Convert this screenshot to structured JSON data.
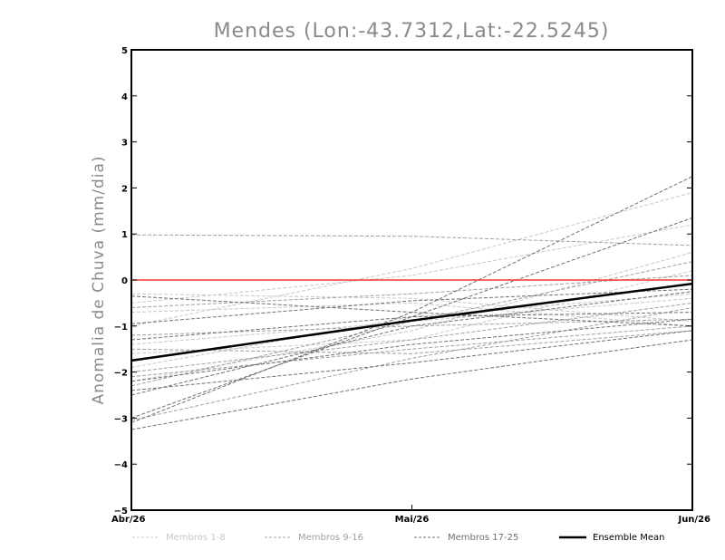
{
  "chart_data": {
    "type": "line",
    "title": "Mendes (Lon:-43.7312,Lat:-22.5245)",
    "xlabel": "",
    "ylabel": "Anomalia de Chuva (mm/dia)",
    "categories": [
      "Abr/26",
      "Mai/26",
      "Jun/26"
    ],
    "ylim": [
      -5,
      5
    ],
    "yticks": [
      -5,
      -4,
      -3,
      -2,
      -1,
      0,
      1,
      2,
      3,
      4,
      5
    ],
    "grid": false,
    "reference_line": {
      "value": 0,
      "color": "#ff3333"
    },
    "series": [
      {
        "name": "m01",
        "group": 0,
        "values": [
          -1.4,
          -0.9,
          -0.4
        ]
      },
      {
        "name": "m02",
        "group": 0,
        "values": [
          -1.0,
          0.25,
          1.9
        ]
      },
      {
        "name": "m03",
        "group": 0,
        "values": [
          -2.2,
          -1.1,
          0.6
        ]
      },
      {
        "name": "m04",
        "group": 0,
        "values": [
          -0.7,
          -0.5,
          -1.0
        ]
      },
      {
        "name": "m05",
        "group": 0,
        "values": [
          -1.6,
          -1.3,
          0.2
        ]
      },
      {
        "name": "m06",
        "group": 0,
        "values": [
          -0.5,
          0.1,
          1.2
        ]
      },
      {
        "name": "m07",
        "group": 0,
        "values": [
          -1.9,
          -0.8,
          -0.3
        ]
      },
      {
        "name": "m08",
        "group": 0,
        "values": [
          -0.3,
          -0.4,
          -0.9
        ]
      },
      {
        "name": "m09",
        "group": 1,
        "values": [
          0.98,
          0.95,
          0.75
        ]
      },
      {
        "name": "m10",
        "group": 1,
        "values": [
          -2.1,
          -1.5,
          -1.0
        ]
      },
      {
        "name": "m11",
        "group": 1,
        "values": [
          -2.3,
          -0.9,
          0.4
        ]
      },
      {
        "name": "m12",
        "group": 1,
        "values": [
          -1.2,
          -1.0,
          -0.85
        ]
      },
      {
        "name": "m13",
        "group": 1,
        "values": [
          -0.6,
          -0.3,
          0.1
        ]
      },
      {
        "name": "m14",
        "group": 1,
        "values": [
          -1.5,
          -1.6,
          -1.1
        ]
      },
      {
        "name": "m15",
        "group": 1,
        "values": [
          -3.05,
          -1.7,
          -0.6
        ]
      },
      {
        "name": "m16",
        "group": 1,
        "values": [
          -2.0,
          -1.3,
          -0.5
        ]
      },
      {
        "name": "m17",
        "group": 2,
        "values": [
          -3.1,
          -0.7,
          2.25
        ]
      },
      {
        "name": "m18",
        "group": 2,
        "values": [
          -3.0,
          -0.8,
          1.35
        ]
      },
      {
        "name": "m19",
        "group": 2,
        "values": [
          -3.25,
          -2.15,
          -1.3
        ]
      },
      {
        "name": "m20",
        "group": 2,
        "values": [
          -0.35,
          -0.7,
          -1.0
        ]
      },
      {
        "name": "m21",
        "group": 2,
        "values": [
          -0.95,
          -0.45,
          -0.2
        ]
      },
      {
        "name": "m22",
        "group": 2,
        "values": [
          -2.2,
          -1.4,
          -0.85
        ]
      },
      {
        "name": "m23",
        "group": 2,
        "values": [
          -2.4,
          -1.8,
          -1.1
        ]
      },
      {
        "name": "m24",
        "group": 2,
        "values": [
          -1.3,
          -0.8,
          -0.7
        ]
      },
      {
        "name": "m25",
        "group": 2,
        "values": [
          -2.5,
          -1.0,
          -0.25
        ]
      },
      {
        "name": "Ensemble Mean",
        "group": 3,
        "values": [
          -1.75,
          -0.88,
          -0.08
        ]
      }
    ],
    "legend": [
      {
        "label": "Membros 1-8",
        "color": "#c8c8c8",
        "style": "dashed"
      },
      {
        "label": "Membros 9-16",
        "color": "#a0a0a0",
        "style": "dashed"
      },
      {
        "label": "Membros 17-25",
        "color": "#707070",
        "style": "dashed"
      },
      {
        "label": "Ensemble Mean",
        "color": "#000000",
        "style": "solid"
      }
    ]
  }
}
